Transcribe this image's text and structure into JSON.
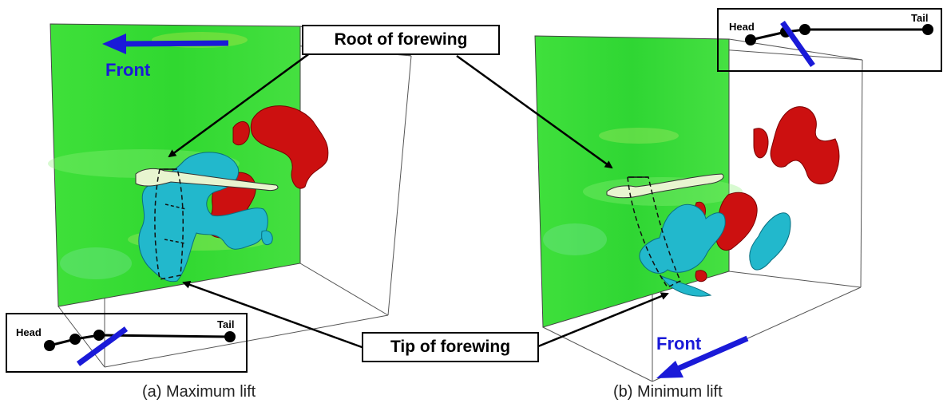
{
  "labels": {
    "root": "Root of forewing",
    "tip": "Tip of forewing"
  },
  "captions": {
    "a": "(a) Maximum lift",
    "b": "(b) Minimum lift"
  },
  "panel_a": {
    "front": "Front",
    "inset": {
      "head": "Head",
      "tail": "Tail"
    }
  },
  "panel_b": {
    "front": "Front",
    "inset": {
      "head": "Head",
      "tail": "Tail"
    }
  },
  "colors": {
    "plane_green": "#2edc2e",
    "vortex_red": "#cc1010",
    "vortex_cyan": "#22b8cc",
    "arrow_blue": "#1a1ad8"
  }
}
